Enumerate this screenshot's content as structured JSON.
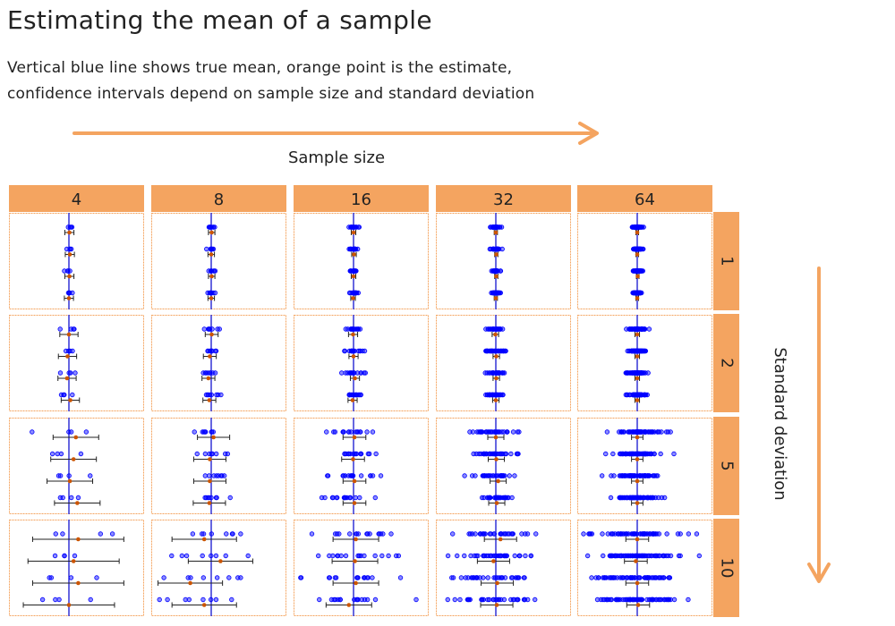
{
  "header": {
    "title": "Estimating the mean of a sample",
    "subtitle_line1": "Vertical blue line shows true mean, orange point is the estimate,",
    "subtitle_line2": "confidence intervals depend on sample size and standard deviation"
  },
  "colors": {
    "strip": "#f4a460",
    "arrow": "#f4a460",
    "mean_line": "#0000cc",
    "point": "#0000ff",
    "estimate": "#cc5500",
    "panel_border": "#f4a460"
  },
  "chart_data": {
    "type": "scatter",
    "x_axis_label": "Sample size",
    "y_axis_label": "Standard deviation",
    "sample_sizes": [
      4,
      8,
      16,
      32,
      64
    ],
    "sample_size_labels": [
      "4",
      "8",
      "16",
      "32",
      "64"
    ],
    "standard_deviations": [
      1,
      2,
      5,
      10
    ],
    "standard_deviation_labels": [
      "1",
      "2",
      "5",
      "10"
    ],
    "samples_per_panel": 4,
    "true_mean": 0,
    "estimates": {
      "sd_1": {
        "n_4": [
          0.1,
          0.2,
          0.1,
          0.0
        ],
        "n_8": [
          0.1,
          0.0,
          0.1,
          0.0
        ],
        "n_16": [
          0.0,
          0.1,
          0.0,
          -0.1
        ],
        "n_32": [
          0.0,
          0.1,
          0.1,
          0.0
        ],
        "n_64": [
          0.0,
          0.0,
          0.1,
          0.0
        ]
      },
      "sd_2": {
        "n_4": [
          0.0,
          -0.3,
          -0.4,
          0.3
        ],
        "n_8": [
          0.1,
          -0.3,
          -0.6,
          -0.4
        ],
        "n_16": [
          -0.1,
          0.0,
          0.3,
          -0.2
        ],
        "n_32": [
          -0.1,
          0.1,
          0.1,
          0.0
        ],
        "n_64": [
          0.0,
          0.0,
          0.0,
          0.0
        ]
      },
      "sd_5": {
        "n_4": [
          1.5,
          1.0,
          0.2,
          1.8
        ],
        "n_8": [
          0.5,
          -0.3,
          -0.3,
          -0.4
        ],
        "n_16": [
          0.2,
          -0.1,
          0.2,
          0.2
        ],
        "n_32": [
          0.0,
          0.1,
          0.5,
          0.2
        ],
        "n_64": [
          0.0,
          0.0,
          0.0,
          0.0
        ]
      },
      "sd_10": {
        "n_4": [
          2.0,
          1.0,
          2.0,
          0.0
        ],
        "n_8": [
          -1.5,
          2.0,
          -4.5,
          -1.5
        ],
        "n_16": [
          0.5,
          0.3,
          0.5,
          -1.0
        ],
        "n_32": [
          1.0,
          -0.5,
          0.3,
          0.2
        ],
        "n_64": [
          0.0,
          -0.3,
          0.0,
          0.2
        ]
      }
    }
  }
}
